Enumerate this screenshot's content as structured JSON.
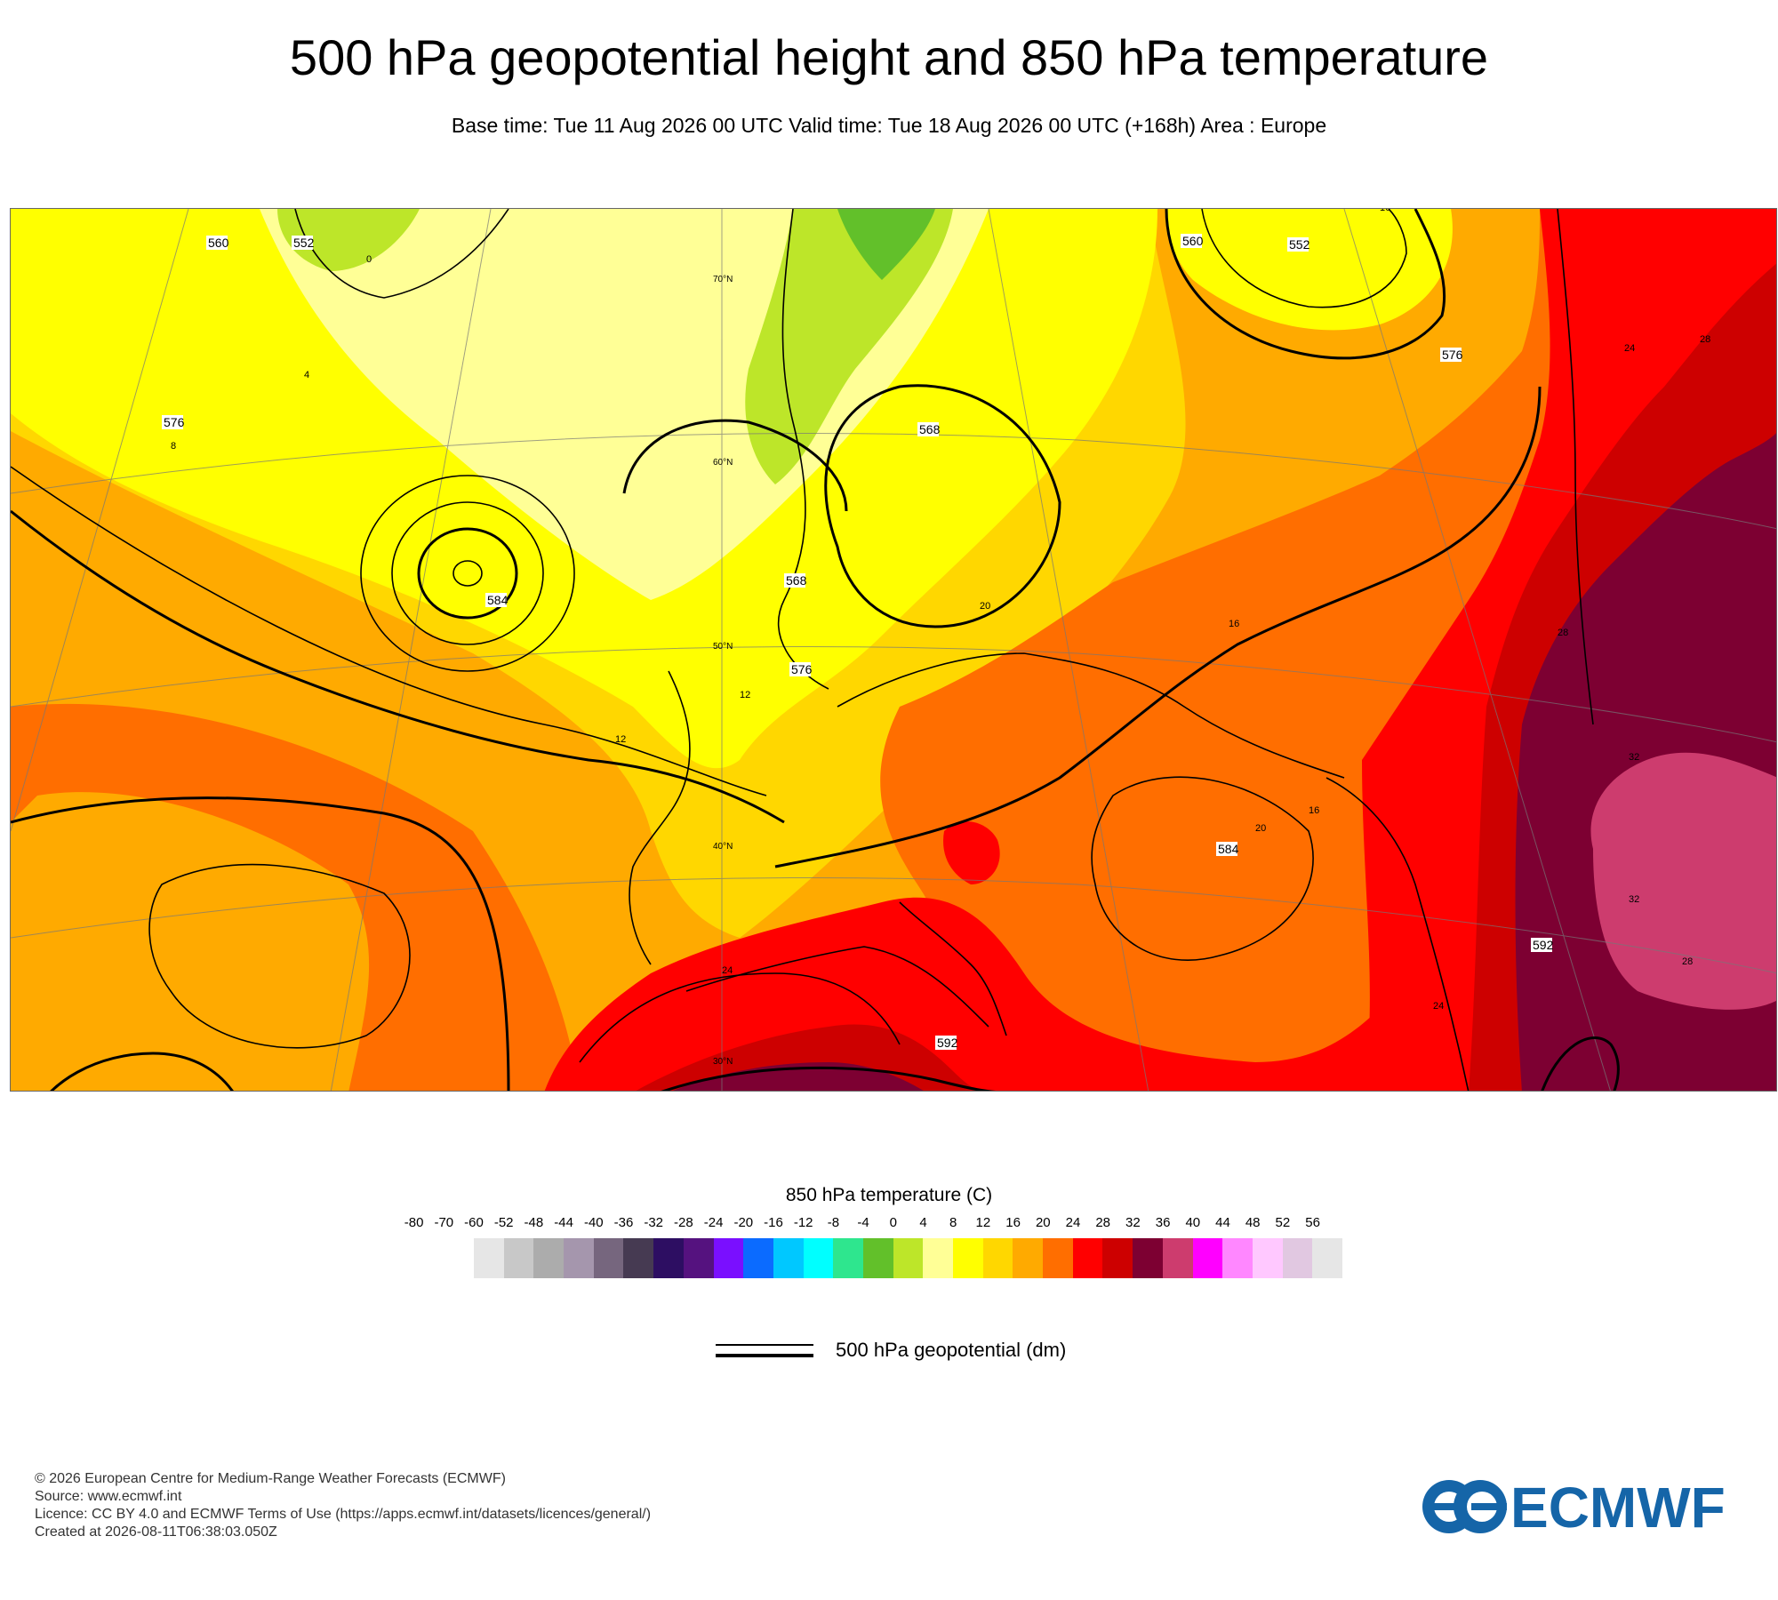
{
  "title": "500 hPa geopotential height and 850 hPa temperature",
  "subtitle": "Base time: Tue 11 Aug 2026 00 UTC Valid time: Tue 18 Aug 2026 00 UTC (+168h) Area : Europe",
  "map": {
    "contour_labels": [
      "560",
      "552",
      "568",
      "576",
      "584",
      "568",
      "576",
      "560",
      "552",
      "576",
      "584",
      "592",
      "592"
    ],
    "temp_labels": [
      "0",
      "4",
      "8",
      "12",
      "16",
      "20",
      "24",
      "28",
      "32",
      "16",
      "12",
      "16",
      "24",
      "28",
      "32",
      "20",
      "24",
      "28"
    ],
    "lat_labels": [
      "70°N",
      "60°N",
      "50°N",
      "40°N",
      "30°N"
    ]
  },
  "colorbar": {
    "title": "850 hPa temperature (C)",
    "ticks": [
      "-80",
      "-70",
      "-60",
      "-52",
      "-48",
      "-44",
      "-40",
      "-36",
      "-32",
      "-28",
      "-24",
      "-20",
      "-16",
      "-12",
      "-8",
      "-4",
      "0",
      "4",
      "8",
      "12",
      "16",
      "20",
      "24",
      "28",
      "32",
      "36",
      "40",
      "44",
      "48",
      "52",
      "56"
    ],
    "colors": [
      "#e6e6e6",
      "#c8c8c8",
      "#acacac",
      "#a596ad",
      "#76667e",
      "#463a52",
      "#2d0e62",
      "#55127f",
      "#7a0fff",
      "#0b6bff",
      "#00c8ff",
      "#00ffff",
      "#2ee68e",
      "#62c02a",
      "#bde629",
      "#ffff96",
      "#ffff00",
      "#ffd700",
      "#ffaa00",
      "#ff6e00",
      "#ff0000",
      "#cd0000",
      "#7d0032",
      "#cd3c6e",
      "#ff00ff",
      "#ff87ff",
      "#ffc8ff",
      "#e1c8e1",
      "#e6e6e6"
    ]
  },
  "legend": {
    "line_label": "500 hPa geopotential (dm)"
  },
  "footer": {
    "lines": [
      "© 2026 European Centre for Medium-Range Weather Forecasts (ECMWF)",
      "Source: www.ecmwf.int",
      "Licence: CC BY 4.0 and ECMWF Terms of Use (https://apps.ecmwf.int/datasets/licences/general/)",
      "Created at 2026-08-11T06:38:03.050Z"
    ]
  },
  "logo": {
    "text": "ECMWF",
    "color": "#1565a8"
  }
}
